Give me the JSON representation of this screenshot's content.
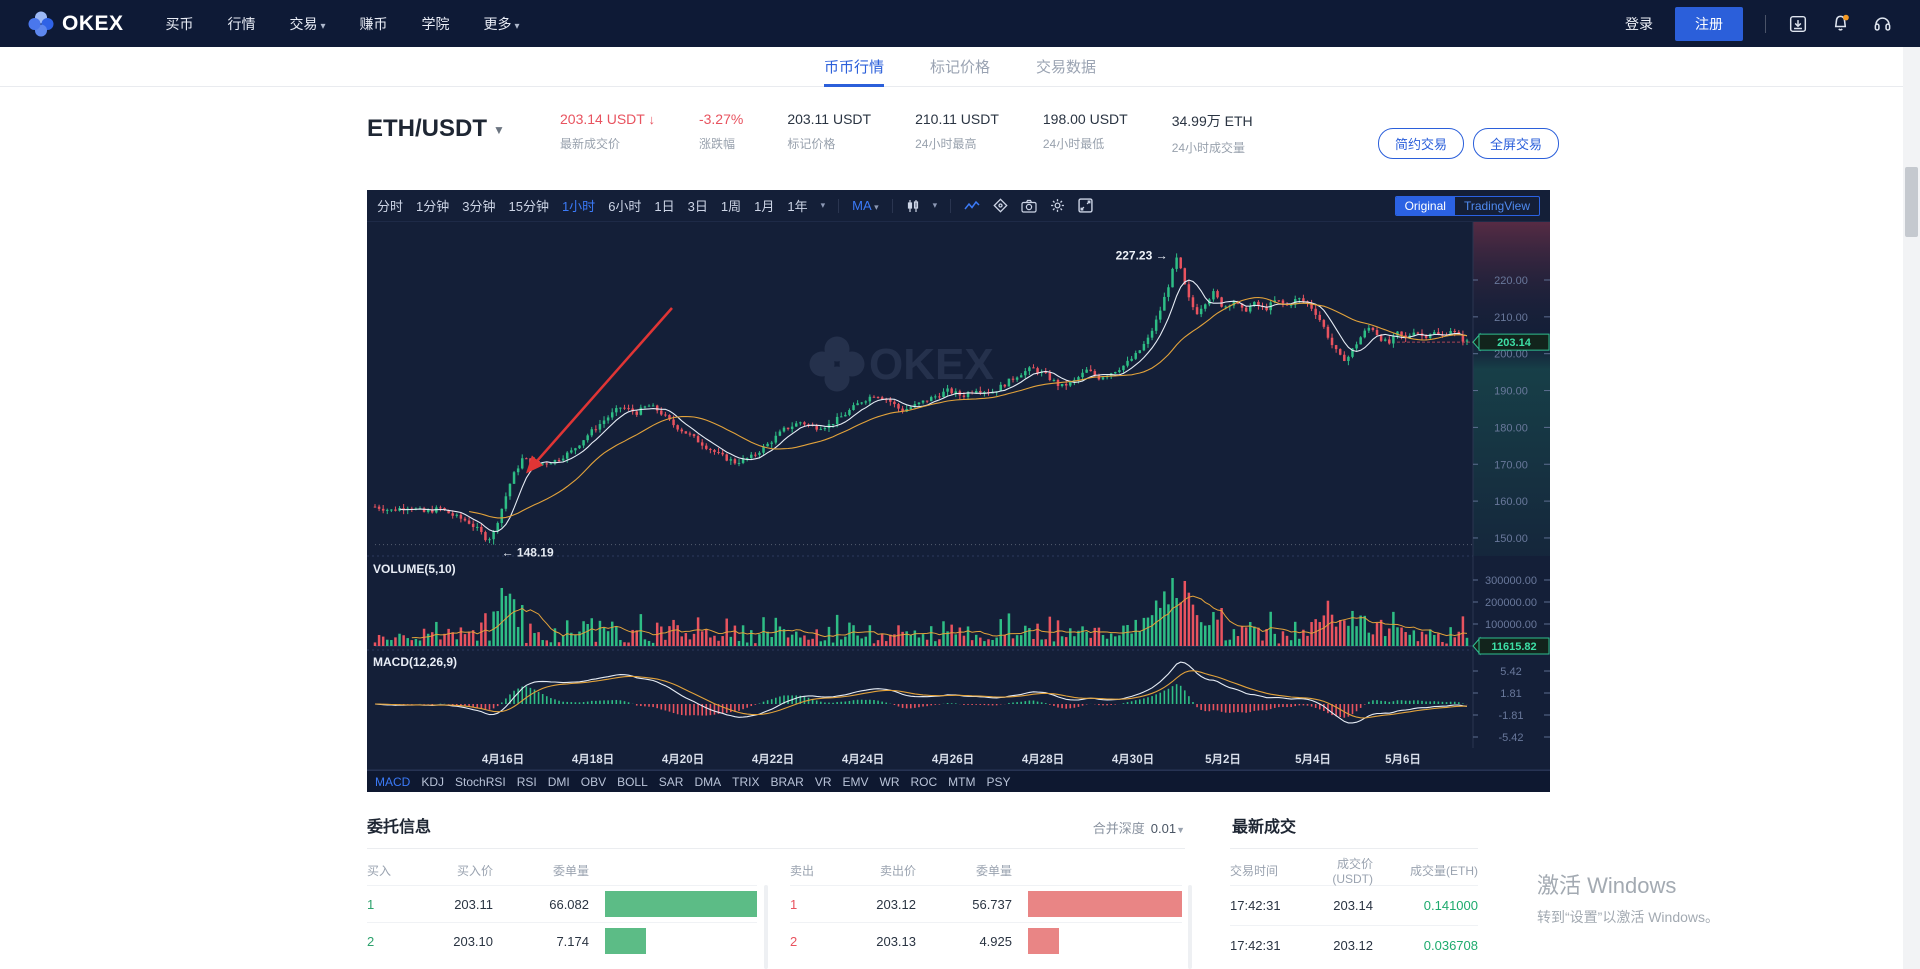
{
  "nav": {
    "brand": "OKEX",
    "items": [
      {
        "label": "买币",
        "caret": false
      },
      {
        "label": "行情",
        "caret": false
      },
      {
        "label": "交易",
        "caret": true
      },
      {
        "label": "赚币",
        "caret": false
      },
      {
        "label": "学院",
        "caret": false
      },
      {
        "label": "更多",
        "caret": true
      }
    ],
    "login": "登录",
    "register": "注册"
  },
  "tabs": [
    {
      "label": "币币行情",
      "active": true
    },
    {
      "label": "标记价格",
      "active": false
    },
    {
      "label": "交易数据",
      "active": false
    }
  ],
  "ticker": {
    "pair": "ETH/USDT",
    "stats": [
      {
        "value": "203.14 USDT",
        "suffix": "↓",
        "label": "最新成交价",
        "down": true
      },
      {
        "value": "-3.27%",
        "suffix": "",
        "label": "涨跌幅",
        "down": true
      },
      {
        "value": "203.11 USDT",
        "suffix": "",
        "label": "标记价格",
        "down": false
      },
      {
        "value": "210.11 USDT",
        "suffix": "",
        "label": "24小时最高",
        "down": false
      },
      {
        "value": "198.00 USDT",
        "suffix": "",
        "label": "24小时最低",
        "down": false
      },
      {
        "value": "34.99万 ETH",
        "suffix": "",
        "label": "24小时成交量",
        "down": false
      }
    ],
    "mode_buttons": [
      "简约交易",
      "全屏交易"
    ]
  },
  "chart": {
    "periods": [
      "分时",
      "1分钟",
      "3分钟",
      "15分钟",
      "1小时",
      "6小时",
      "1日",
      "3日",
      "1周",
      "1月",
      "1年"
    ],
    "active_period": "1小时",
    "ma_label": "MA",
    "toggle": {
      "original": "Original",
      "tradingview": "TradingView"
    },
    "volume_label": "VOLUME(5,10)",
    "macd_label": "MACD(12,26,9)",
    "price_ticks": [
      "220.00",
      "210.00",
      "200.00",
      "190.00",
      "180.00",
      "170.00",
      "160.00",
      "150.00"
    ],
    "current_price": "203.14",
    "volume_ticks": [
      "300000.00",
      "200000.00",
      "100000.00"
    ],
    "current_volume": "11615.82",
    "macd_ticks": [
      "5.42",
      "1.81",
      "-1.81",
      "-5.42"
    ],
    "dates": [
      "4月16日",
      "4月18日",
      "4月20日",
      "4月22日",
      "4月24日",
      "4月26日",
      "4月28日",
      "4月30日",
      "5月2日",
      "5月4日",
      "5月6日"
    ],
    "indicators": [
      "MACD",
      "KDJ",
      "StochRSI",
      "RSI",
      "DMI",
      "OBV",
      "BOLL",
      "SAR",
      "DMA",
      "TRIX",
      "BRAR",
      "VR",
      "EMV",
      "WR",
      "ROC",
      "MTM",
      "PSY"
    ],
    "active_indicator": "MACD",
    "annotation_high": "227.23 →",
    "annotation_low": "← 148.19",
    "watermark": "OKEX"
  },
  "chart_data": {
    "type": "candlestick",
    "pair": "ETH/USDT",
    "interval": "1小时",
    "y_axis_range": [
      145,
      235
    ],
    "high_label": 227.23,
    "low_label": 148.19,
    "last_price": 203.14,
    "volume_axis_max": 300000,
    "macd_axis_range": [
      -5.42,
      5.42
    ],
    "price_path": [
      [
        0,
        158.5
      ],
      [
        0.015,
        157.5
      ],
      [
        0.03,
        158.5
      ],
      [
        0.045,
        157
      ],
      [
        0.06,
        158
      ],
      [
        0.072,
        156
      ],
      [
        0.085,
        154.5
      ],
      [
        0.095,
        152
      ],
      [
        0.103,
        149.5
      ],
      [
        0.108,
        151
      ],
      [
        0.115,
        157
      ],
      [
        0.125,
        166
      ],
      [
        0.135,
        171.5
      ],
      [
        0.15,
        170
      ],
      [
        0.165,
        171
      ],
      [
        0.18,
        173.5
      ],
      [
        0.195,
        178
      ],
      [
        0.21,
        182
      ],
      [
        0.225,
        185.5
      ],
      [
        0.24,
        184
      ],
      [
        0.25,
        186
      ],
      [
        0.26,
        184.5
      ],
      [
        0.272,
        181
      ],
      [
        0.285,
        178.5
      ],
      [
        0.3,
        175.5
      ],
      [
        0.315,
        172.5
      ],
      [
        0.33,
        170.5
      ],
      [
        0.345,
        172
      ],
      [
        0.36,
        175.5
      ],
      [
        0.375,
        179.5
      ],
      [
        0.39,
        181.5
      ],
      [
        0.402,
        180
      ],
      [
        0.415,
        180.5
      ],
      [
        0.43,
        183.5
      ],
      [
        0.445,
        187
      ],
      [
        0.458,
        189
      ],
      [
        0.47,
        187.5
      ],
      [
        0.482,
        184.5
      ],
      [
        0.495,
        186
      ],
      [
        0.51,
        188
      ],
      [
        0.525,
        190
      ],
      [
        0.538,
        188.5
      ],
      [
        0.55,
        190.5
      ],
      [
        0.565,
        189.5
      ],
      [
        0.578,
        192
      ],
      [
        0.59,
        194.5
      ],
      [
        0.602,
        196
      ],
      [
        0.615,
        194
      ],
      [
        0.628,
        191
      ],
      [
        0.64,
        192.5
      ],
      [
        0.652,
        195.5
      ],
      [
        0.663,
        193.5
      ],
      [
        0.675,
        195
      ],
      [
        0.687,
        197
      ],
      [
        0.698,
        200
      ],
      [
        0.708,
        204
      ],
      [
        0.717,
        210
      ],
      [
        0.725,
        217
      ],
      [
        0.731,
        223
      ],
      [
        0.735,
        226.5
      ],
      [
        0.739,
        221
      ],
      [
        0.745,
        215
      ],
      [
        0.752,
        211
      ],
      [
        0.76,
        214
      ],
      [
        0.768,
        216.5
      ],
      [
        0.777,
        212.5
      ],
      [
        0.786,
        214.5
      ],
      [
        0.795,
        211.5
      ],
      [
        0.805,
        213.5
      ],
      [
        0.815,
        212
      ],
      [
        0.825,
        214.5
      ],
      [
        0.835,
        213
      ],
      [
        0.845,
        215
      ],
      [
        0.855,
        213.5
      ],
      [
        0.863,
        210.5
      ],
      [
        0.87,
        206.5
      ],
      [
        0.877,
        202
      ],
      [
        0.884,
        199
      ],
      [
        0.89,
        198.5
      ],
      [
        0.897,
        202
      ],
      [
        0.905,
        205.5
      ],
      [
        0.912,
        207.5
      ],
      [
        0.92,
        204.5
      ],
      [
        0.928,
        202.5
      ],
      [
        0.936,
        205.5
      ],
      [
        0.944,
        204
      ],
      [
        0.952,
        206.5
      ],
      [
        0.96,
        204.5
      ],
      [
        0.968,
        206
      ],
      [
        0.976,
        204.5
      ],
      [
        0.985,
        206.5
      ],
      [
        0.993,
        204.5
      ],
      [
        1,
        203.14
      ]
    ]
  },
  "orderbook": {
    "title": "委托信息",
    "depth_label": "合并深度",
    "depth_value": "0.01",
    "buy": {
      "headers": [
        "买入",
        "买入价",
        "委单量"
      ],
      "rows": [
        {
          "idx": "1",
          "price": "203.11",
          "amount": "66.082",
          "bar": 1.0
        },
        {
          "idx": "2",
          "price": "203.10",
          "amount": "7.174",
          "bar": 0.27
        }
      ]
    },
    "sell": {
      "headers": [
        "卖出",
        "卖出价",
        "委单量"
      ],
      "rows": [
        {
          "idx": "1",
          "price": "203.12",
          "amount": "56.737",
          "bar": 1.0
        },
        {
          "idx": "2",
          "price": "203.13",
          "amount": "4.925",
          "bar": 0.2
        }
      ]
    }
  },
  "trades": {
    "title": "最新成交",
    "headers": [
      "交易时间",
      "成交价(USDT)",
      "成交量(ETH)"
    ],
    "rows": [
      {
        "time": "17:42:31",
        "price": "203.14",
        "amount": "0.141000"
      },
      {
        "time": "17:42:31",
        "price": "203.12",
        "amount": "0.036708"
      }
    ]
  },
  "os_watermark": {
    "line1": "激活 Windows",
    "line2": "转到“设置”以激活 Windows。"
  },
  "colors": {
    "up": "#2ebd85",
    "down": "#e8535f",
    "accent": "#2b5fda",
    "chart_accent": "#3b7af7",
    "tag_green": "#3ddfa6",
    "ma_fast": "#e6ecf5",
    "ma_slow": "#e2a23b",
    "nav_bg": "#0e1a36",
    "chart_bg": "#141f38",
    "notice_dot": "#f59a23",
    "trade_green": "#1daa6d"
  }
}
